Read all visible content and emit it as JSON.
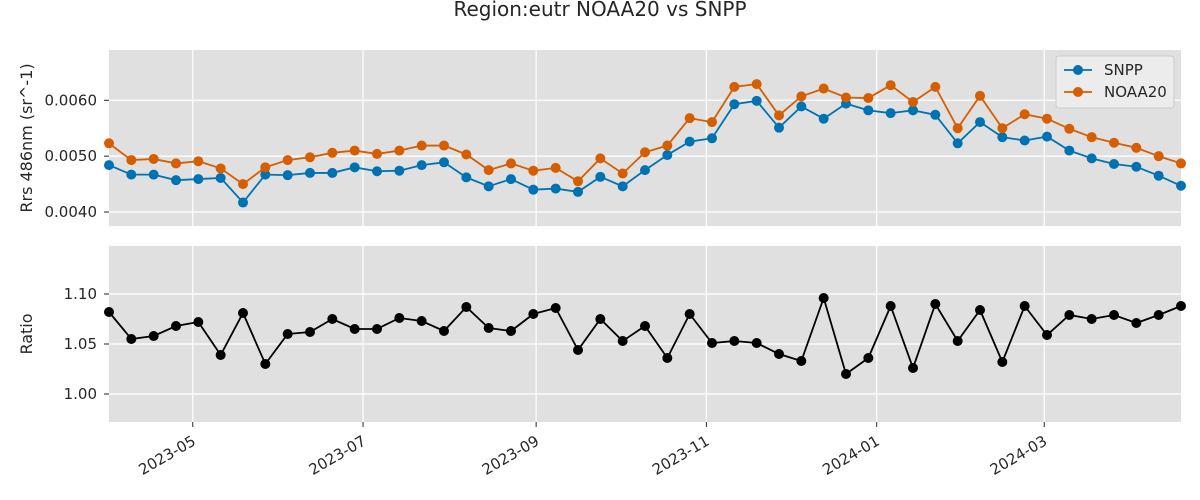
{
  "chart_data": {
    "type": "line",
    "title": "Region:eutr NOAA20 vs SNPP",
    "x": [
      "2023-04-01",
      "2023-04-09",
      "2023-04-17",
      "2023-04-25",
      "2023-05-03",
      "2023-05-11",
      "2023-05-19",
      "2023-05-27",
      "2023-06-04",
      "2023-06-12",
      "2023-06-20",
      "2023-06-28",
      "2023-07-06",
      "2023-07-14",
      "2023-07-22",
      "2023-07-30",
      "2023-08-07",
      "2023-08-15",
      "2023-08-23",
      "2023-08-31",
      "2023-09-08",
      "2023-09-16",
      "2023-09-24",
      "2023-10-02",
      "2023-10-10",
      "2023-10-18",
      "2023-10-26",
      "2023-11-03",
      "2023-11-11",
      "2023-11-19",
      "2023-11-27",
      "2023-12-05",
      "2023-12-13",
      "2023-12-21",
      "2023-12-29",
      "2024-01-06",
      "2024-01-14",
      "2024-01-22",
      "2024-01-30",
      "2024-02-07",
      "2024-02-15",
      "2024-02-23",
      "2024-03-02",
      "2024-03-10",
      "2024-03-18",
      "2024-03-26",
      "2024-04-03",
      "2024-04-11",
      "2024-04-19"
    ],
    "top_panel": {
      "ylabel": "Rrs 486nm (sr^-1)",
      "ylim": [
        0.00375,
        0.0069
      ],
      "yticks": [
        0.004,
        0.005,
        0.006
      ],
      "ytick_labels": [
        "0.0040",
        "0.0050",
        "0.0060"
      ],
      "legend": "top-right",
      "series": [
        {
          "name": "SNPP",
          "color": "#0072b2",
          "values": [
            0.00484,
            0.00467,
            0.00467,
            0.00457,
            0.00459,
            0.00461,
            0.00417,
            0.00467,
            0.00466,
            0.0047,
            0.0047,
            0.0048,
            0.00473,
            0.00474,
            0.00484,
            0.00489,
            0.00462,
            0.00446,
            0.00459,
            0.0044,
            0.00442,
            0.00436,
            0.00463,
            0.00446,
            0.00475,
            0.00502,
            0.00526,
            0.00532,
            0.00593,
            0.00599,
            0.00551,
            0.00589,
            0.00567,
            0.00594,
            0.00582,
            0.00577,
            0.00582,
            0.00574,
            0.00523,
            0.00561,
            0.00534,
            0.00528,
            0.00535,
            0.0051,
            0.00496,
            0.00486,
            0.00481,
            0.00465,
            0.00447
          ]
        },
        {
          "name": "NOAA20",
          "color": "#d55e00",
          "values": [
            0.00523,
            0.00493,
            0.00495,
            0.00487,
            0.00491,
            0.00478,
            0.0045,
            0.0048,
            0.00493,
            0.00498,
            0.00506,
            0.0051,
            0.00504,
            0.0051,
            0.00519,
            0.00519,
            0.00503,
            0.00475,
            0.00487,
            0.00474,
            0.00479,
            0.00455,
            0.00496,
            0.00469,
            0.00507,
            0.00519,
            0.00568,
            0.00561,
            0.00624,
            0.00629,
            0.00573,
            0.00607,
            0.00621,
            0.00605,
            0.00604,
            0.00627,
            0.00597,
            0.00624,
            0.0055,
            0.00608,
            0.0055,
            0.00575,
            0.00567,
            0.00549,
            0.00534,
            0.00524,
            0.00515,
            0.005,
            0.00487
          ]
        }
      ]
    },
    "bottom_panel": {
      "ylabel": "Ratio",
      "ylim": [
        0.972,
        1.148
      ],
      "yticks": [
        1.0,
        1.05,
        1.1
      ],
      "ytick_labels": [
        "1.00",
        "1.05",
        "1.10"
      ],
      "series": [
        {
          "name": "",
          "color": "#000000",
          "values": [
            1.082,
            1.055,
            1.058,
            1.068,
            1.072,
            1.039,
            1.081,
            1.03,
            1.06,
            1.062,
            1.075,
            1.065,
            1.065,
            1.076,
            1.073,
            1.063,
            1.087,
            1.066,
            1.063,
            1.08,
            1.086,
            1.044,
            1.075,
            1.053,
            1.068,
            1.036,
            1.08,
            1.051,
            1.053,
            1.051,
            1.04,
            1.033,
            1.096,
            1.02,
            1.036,
            1.088,
            1.026,
            1.09,
            1.053,
            1.084,
            1.032,
            1.088,
            1.059,
            1.079,
            1.075,
            1.079,
            1.071,
            1.079,
            1.088
          ]
        }
      ]
    },
    "xticks": [
      "2023-05-01",
      "2023-07-01",
      "2023-09-01",
      "2023-11-01",
      "2024-01-01",
      "2024-03-01"
    ],
    "xtick_labels": [
      "2023-05",
      "2023-07",
      "2023-09",
      "2023-11",
      "2024-01",
      "2024-03"
    ],
    "xlim": [
      "2023-04-01",
      "2024-04-19"
    ],
    "grid": true
  }
}
